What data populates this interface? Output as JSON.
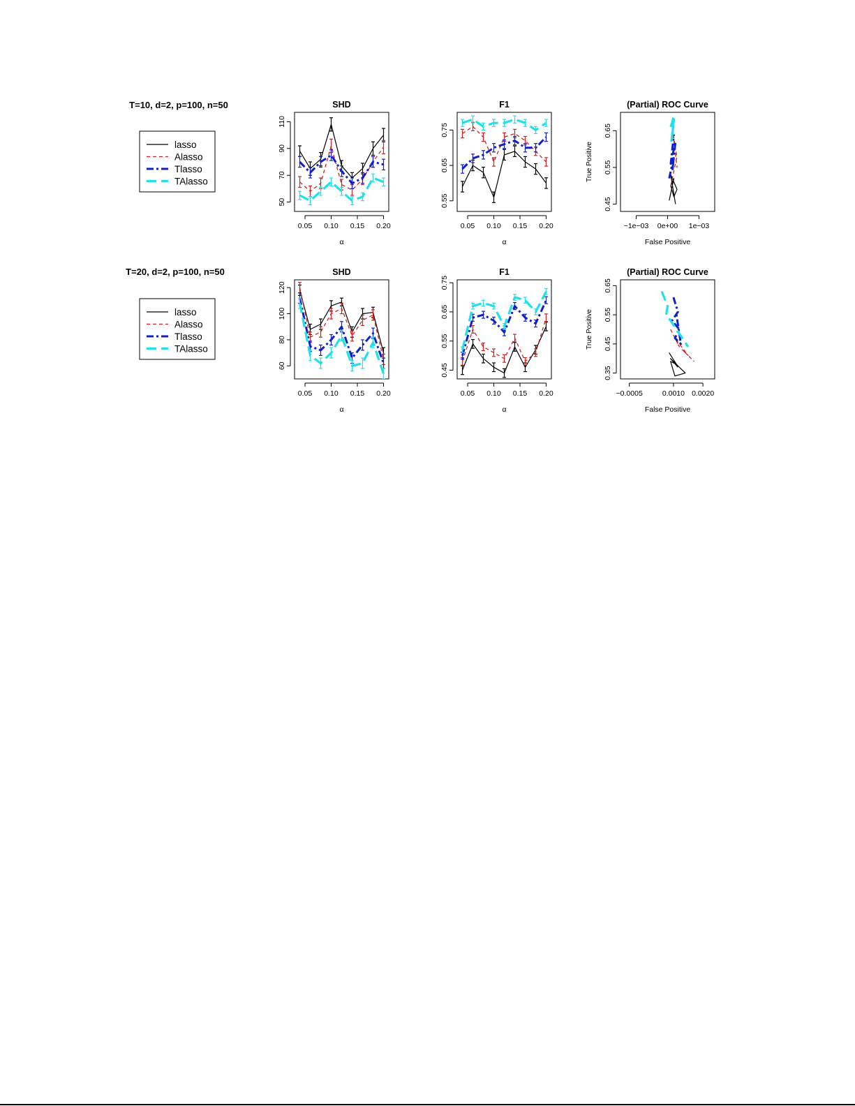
{
  "series_styles": [
    {
      "name": "lasso",
      "color": "#000000",
      "width": 1.2,
      "dash": ""
    },
    {
      "name": "Alasso",
      "color": "#cc2222",
      "width": 1.3,
      "dash": "5,4"
    },
    {
      "name": "Tlasso",
      "color": "#1020c8",
      "width": 3.0,
      "dash": "10,4,3,4"
    },
    {
      "name": "TAlasso",
      "color": "#22e0e8",
      "width": 3.2,
      "dash": "14,7"
    }
  ],
  "rows": [
    {
      "setting_label": "T=10, d=2, p=100, n=50",
      "legend": [
        "lasso",
        "Alasso",
        "Tlasso",
        "TAlasso"
      ]
    },
    {
      "setting_label": "T=20, d=2, p=100, n=50",
      "legend": [
        "lasso",
        "Alasso",
        "Tlasso",
        "TAlasso"
      ]
    }
  ],
  "chart_data": [
    {
      "type": "line",
      "title": "SHD",
      "xlabel": "α",
      "ylabel": "",
      "xlim": [
        0.03,
        0.21
      ],
      "ylim": [
        43,
        117
      ],
      "xticks": [
        0.05,
        0.1,
        0.15,
        0.2
      ],
      "xtick_labels": [
        "0.05",
        "0.10",
        "0.15",
        "0.20"
      ],
      "yticks": [
        50,
        70,
        90,
        110
      ],
      "ytick_labels": [
        "50",
        "70",
        "90",
        "110"
      ],
      "x": [
        0.04,
        0.06,
        0.08,
        0.1,
        0.12,
        0.14,
        0.16,
        0.18,
        0.2
      ],
      "series": [
        {
          "name": "lasso",
          "values": [
            88,
            75,
            82,
            108,
            77,
            68,
            75,
            90,
            100
          ],
          "error": [
            4,
            5,
            5,
            5,
            4,
            4,
            4,
            5,
            5
          ]
        },
        {
          "name": "Alasso",
          "values": [
            65,
            58,
            64,
            92,
            63,
            59,
            67,
            80,
            91
          ],
          "error": [
            4,
            4,
            4,
            5,
            4,
            4,
            4,
            4,
            5
          ]
        },
        {
          "name": "Tlasso",
          "values": [
            80,
            72,
            80,
            85,
            73,
            64,
            68,
            80,
            78
          ],
          "error": [
            4,
            4,
            4,
            4,
            4,
            4,
            4,
            4,
            4
          ]
        },
        {
          "name": "TAlasso",
          "values": [
            55,
            51,
            58,
            65,
            58,
            51,
            54,
            68,
            65
          ],
          "error": [
            3,
            3,
            3,
            3,
            3,
            3,
            3,
            3,
            3
          ]
        }
      ]
    },
    {
      "type": "line",
      "title": "F1",
      "xlabel": "α",
      "ylabel": "",
      "xlim": [
        0.03,
        0.21
      ],
      "ylim": [
        0.52,
        0.8
      ],
      "xticks": [
        0.05,
        0.1,
        0.15,
        0.2
      ],
      "xtick_labels": [
        "0.05",
        "0.10",
        "0.15",
        "0.20"
      ],
      "yticks": [
        0.55,
        0.65,
        0.75
      ],
      "ytick_labels": [
        "0.55",
        "0.65",
        "0.75"
      ],
      "x": [
        0.04,
        0.06,
        0.08,
        0.1,
        0.12,
        0.14,
        0.16,
        0.18,
        0.2
      ],
      "series": [
        {
          "name": "lasso",
          "values": [
            0.59,
            0.65,
            0.63,
            0.56,
            0.68,
            0.69,
            0.66,
            0.64,
            0.6
          ],
          "error": [
            0.015,
            0.015,
            0.015,
            0.015,
            0.015,
            0.015,
            0.015,
            0.015,
            0.015
          ]
        },
        {
          "name": "Alasso",
          "values": [
            0.74,
            0.76,
            0.73,
            0.66,
            0.73,
            0.74,
            0.72,
            0.69,
            0.66
          ],
          "error": [
            0.012,
            0.012,
            0.012,
            0.012,
            0.012,
            0.012,
            0.012,
            0.012,
            0.012
          ]
        },
        {
          "name": "Tlasso",
          "values": [
            0.64,
            0.67,
            0.68,
            0.7,
            0.71,
            0.72,
            0.7,
            0.7,
            0.73
          ],
          "error": [
            0.012,
            0.012,
            0.012,
            0.012,
            0.012,
            0.012,
            0.012,
            0.012,
            0.012
          ]
        },
        {
          "name": "TAlasso",
          "values": [
            0.77,
            0.78,
            0.76,
            0.77,
            0.77,
            0.78,
            0.77,
            0.75,
            0.77
          ],
          "error": [
            0.01,
            0.01,
            0.01,
            0.01,
            0.01,
            0.01,
            0.01,
            0.01,
            0.01
          ]
        }
      ]
    },
    {
      "type": "line",
      "title": "(Partial) ROC Curve",
      "xlabel": "False Positive",
      "ylabel": "True Positive",
      "xlim": [
        -0.0015,
        0.0015
      ],
      "ylim": [
        0.43,
        0.7
      ],
      "xticks": [
        -0.001,
        0,
        0.001
      ],
      "xtick_labels": [
        "−1e−03",
        "0e+00",
        "1e−03"
      ],
      "yticks": [
        0.45,
        0.55,
        0.65
      ],
      "ytick_labels": [
        "0.45",
        "0.55",
        "0.65"
      ],
      "series": [
        {
          "name": "lasso",
          "x": [
            5e-05,
            0.0002,
            0.0001,
            0.0002,
            0.0003,
            0.0001,
            0.00025
          ],
          "y": [
            0.46,
            0.52,
            0.5,
            0.47,
            0.49,
            0.53,
            0.45
          ]
        },
        {
          "name": "Alasso",
          "x": [
            0.0001,
            0.0003,
            0.0002,
            0.0003,
            0.00015,
            0.00025
          ],
          "y": [
            0.5,
            0.58,
            0.62,
            0.55,
            0.66,
            0.6
          ]
        },
        {
          "name": "Tlasso",
          "x": [
            5e-05,
            0.0002,
            0.00015,
            0.00025,
            0.0001,
            0.0002
          ],
          "y": [
            0.52,
            0.58,
            0.54,
            0.62,
            0.56,
            0.64
          ]
        },
        {
          "name": "TAlasso",
          "x": [
            0.0001,
            0.0002,
            0.00015,
            0.0002,
            0.00012
          ],
          "y": [
            0.66,
            0.69,
            0.64,
            0.68,
            0.62
          ]
        }
      ]
    },
    {
      "type": "line",
      "title": "SHD",
      "xlabel": "α",
      "ylabel": "",
      "xlim": [
        0.03,
        0.21
      ],
      "ylim": [
        50,
        126
      ],
      "xticks": [
        0.05,
        0.1,
        0.15,
        0.2
      ],
      "xtick_labels": [
        "0.05",
        "0.10",
        "0.15",
        "0.20"
      ],
      "yticks": [
        60,
        80,
        100,
        120
      ],
      "ytick_labels": [
        "60",
        "80",
        "100",
        "120"
      ],
      "x": [
        0.04,
        0.06,
        0.08,
        0.1,
        0.12,
        0.14,
        0.16,
        0.18,
        0.2
      ],
      "series": [
        {
          "name": "lasso",
          "values": [
            118,
            88,
            92,
            106,
            109,
            86,
            100,
            101,
            70
          ],
          "error": [
            4,
            4,
            4,
            4,
            3,
            4,
            4,
            4,
            4
          ]
        },
        {
          "name": "Alasso",
          "values": [
            120,
            82,
            86,
            100,
            104,
            83,
            95,
            99,
            65
          ],
          "error": [
            4,
            4,
            4,
            4,
            4,
            4,
            4,
            4,
            4
          ]
        },
        {
          "name": "Tlasso",
          "values": [
            112,
            75,
            72,
            80,
            90,
            66,
            76,
            85,
            62
          ],
          "error": [
            4,
            4,
            4,
            4,
            4,
            4,
            4,
            4,
            4
          ]
        },
        {
          "name": "TAlasso",
          "values": [
            108,
            68,
            62,
            70,
            83,
            60,
            62,
            78,
            54
          ],
          "error": [
            4,
            4,
            4,
            4,
            4,
            4,
            4,
            4,
            4
          ]
        }
      ]
    },
    {
      "type": "line",
      "title": "F1",
      "xlabel": "α",
      "ylabel": "",
      "xlim": [
        0.03,
        0.21
      ],
      "ylim": [
        0.42,
        0.76
      ],
      "xticks": [
        0.05,
        0.1,
        0.15,
        0.2
      ],
      "xtick_labels": [
        "0.05",
        "0.10",
        "0.15",
        "0.20"
      ],
      "yticks": [
        0.45,
        0.55,
        0.65,
        0.75
      ],
      "ytick_labels": [
        "0.45",
        "0.55",
        "0.65",
        "0.75"
      ],
      "x": [
        0.04,
        0.06,
        0.08,
        0.1,
        0.12,
        0.14,
        0.16,
        0.18,
        0.2
      ],
      "series": [
        {
          "name": "lasso",
          "values": [
            0.45,
            0.54,
            0.49,
            0.46,
            0.44,
            0.53,
            0.46,
            0.52,
            0.6
          ],
          "error": [
            0.015,
            0.015,
            0.015,
            0.015,
            0.015,
            0.015,
            0.015,
            0.015,
            0.015
          ]
        },
        {
          "name": "Alasso",
          "values": [
            0.48,
            0.59,
            0.53,
            0.51,
            0.49,
            0.56,
            0.48,
            0.51,
            0.63
          ],
          "error": [
            0.013,
            0.013,
            0.013,
            0.013,
            0.013,
            0.013,
            0.013,
            0.013,
            0.013
          ]
        },
        {
          "name": "Tlasso",
          "values": [
            0.5,
            0.63,
            0.64,
            0.62,
            0.58,
            0.67,
            0.63,
            0.61,
            0.69
          ],
          "error": [
            0.012,
            0.012,
            0.012,
            0.012,
            0.012,
            0.012,
            0.012,
            0.012,
            0.012
          ]
        },
        {
          "name": "TAlasso",
          "values": [
            0.52,
            0.67,
            0.68,
            0.67,
            0.6,
            0.7,
            0.69,
            0.65,
            0.72
          ],
          "error": [
            0.01,
            0.01,
            0.01,
            0.01,
            0.01,
            0.01,
            0.01,
            0.01,
            0.01
          ]
        }
      ]
    },
    {
      "type": "line",
      "title": "(Partial) ROC Curve",
      "xlabel": "False Positive",
      "ylabel": "True Positive",
      "xlim": [
        -0.0008,
        0.0024
      ],
      "ylim": [
        0.33,
        0.67
      ],
      "xticks": [
        -0.0005,
        0.001,
        0.002
      ],
      "xtick_labels": [
        "−0.0005",
        "0.0010",
        "0.0020"
      ],
      "yticks": [
        0.35,
        0.45,
        0.55,
        0.65
      ],
      "ytick_labels": [
        "0.35",
        "0.45",
        "0.55",
        "0.65"
      ],
      "series": [
        {
          "name": "lasso",
          "x": [
            0.00085,
            0.0011,
            0.0009,
            0.00105,
            0.0014,
            0.0009,
            0.00115
          ],
          "y": [
            0.42,
            0.38,
            0.39,
            0.34,
            0.35,
            0.4,
            0.37
          ]
        },
        {
          "name": "Alasso",
          "x": [
            0.0009,
            0.0012,
            0.00105,
            0.0015,
            0.0013,
            0.0017
          ],
          "y": [
            0.5,
            0.44,
            0.47,
            0.41,
            0.43,
            0.39
          ]
        },
        {
          "name": "Tlasso",
          "x": [
            0.001,
            0.00115,
            0.00095,
            0.0012,
            0.00105,
            0.00125,
            0.0011
          ],
          "y": [
            0.61,
            0.56,
            0.53,
            0.5,
            0.47,
            0.45,
            0.55
          ]
        },
        {
          "name": "TAlasso",
          "x": [
            0.0006,
            0.0008,
            0.00075,
            0.0009,
            0.0011,
            0.0013,
            0.0015
          ],
          "y": [
            0.63,
            0.58,
            0.55,
            0.53,
            0.5,
            0.47,
            0.44
          ]
        }
      ]
    }
  ]
}
